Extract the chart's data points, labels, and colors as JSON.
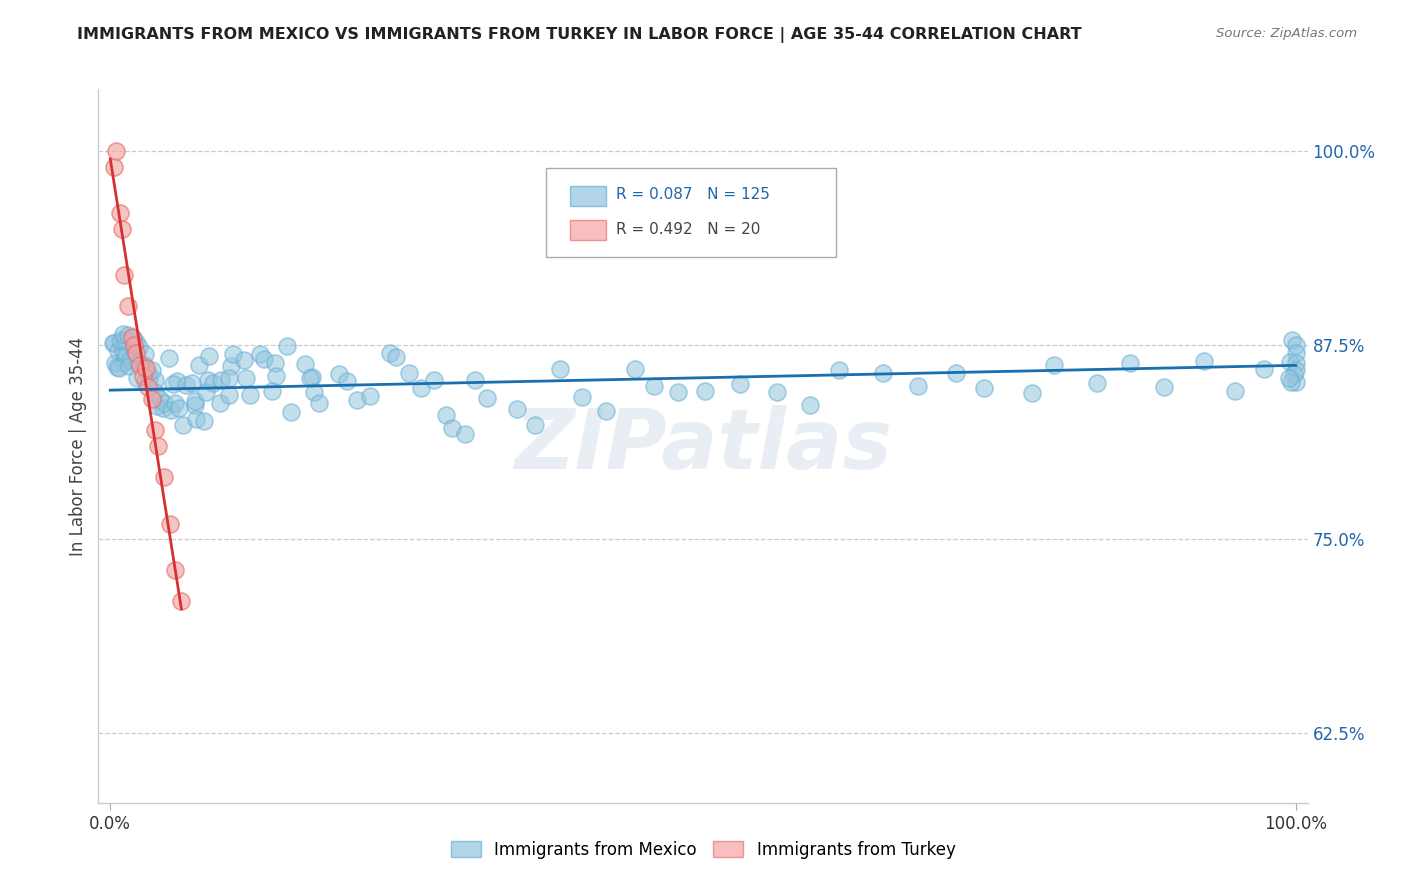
{
  "title": "IMMIGRANTS FROM MEXICO VS IMMIGRANTS FROM TURKEY IN LABOR FORCE | AGE 35-44 CORRELATION CHART",
  "source": "Source: ZipAtlas.com",
  "ylabel": "In Labor Force | Age 35-44",
  "right_ytick_labels": [
    "62.5%",
    "75.0%",
    "87.5%",
    "100.0%"
  ],
  "right_ytick_vals": [
    0.625,
    0.75,
    0.875,
    1.0
  ],
  "mexico_color": "#92c5de",
  "turkey_color": "#f4a5a5",
  "mexico_edge_color": "#6baed6",
  "turkey_edge_color": "#e87070",
  "mexico_line_color": "#1a6faf",
  "turkey_line_color": "#d63030",
  "mexico_R": 0.087,
  "mexico_N": 125,
  "turkey_R": 0.492,
  "turkey_N": 20,
  "legend_mexico": "Immigrants from Mexico",
  "legend_turkey": "Immigrants from Turkey",
  "watermark": "ZIPatlas",
  "xlim": [
    0.0,
    1.0
  ],
  "ylim": [
    0.58,
    1.04
  ],
  "mexico_x": [
    0.002,
    0.003,
    0.004,
    0.005,
    0.006,
    0.007,
    0.008,
    0.009,
    0.01,
    0.011,
    0.012,
    0.013,
    0.014,
    0.015,
    0.016,
    0.017,
    0.018,
    0.019,
    0.02,
    0.021,
    0.022,
    0.023,
    0.024,
    0.025,
    0.026,
    0.027,
    0.028,
    0.03,
    0.032,
    0.033,
    0.035,
    0.037,
    0.038,
    0.04,
    0.042,
    0.044,
    0.045,
    0.047,
    0.05,
    0.052,
    0.054,
    0.056,
    0.058,
    0.06,
    0.063,
    0.065,
    0.068,
    0.07,
    0.073,
    0.075,
    0.078,
    0.08,
    0.083,
    0.085,
    0.088,
    0.09,
    0.093,
    0.095,
    0.098,
    0.1,
    0.105,
    0.11,
    0.115,
    0.12,
    0.125,
    0.13,
    0.135,
    0.14,
    0.145,
    0.15,
    0.155,
    0.16,
    0.165,
    0.17,
    0.175,
    0.18,
    0.19,
    0.2,
    0.21,
    0.22,
    0.23,
    0.24,
    0.25,
    0.26,
    0.27,
    0.28,
    0.29,
    0.3,
    0.31,
    0.32,
    0.34,
    0.36,
    0.38,
    0.4,
    0.42,
    0.44,
    0.46,
    0.48,
    0.5,
    0.53,
    0.56,
    0.59,
    0.62,
    0.65,
    0.68,
    0.71,
    0.74,
    0.77,
    0.8,
    0.83,
    0.86,
    0.89,
    0.92,
    0.95,
    0.98,
    1.0,
    1.0,
    1.0,
    1.0,
    1.0,
    1.0,
    1.0,
    1.0,
    1.0,
    1.0
  ],
  "mexico_y": [
    0.88,
    0.878,
    0.875,
    0.872,
    0.87,
    0.868,
    0.865,
    0.862,
    0.875,
    0.873,
    0.87,
    0.868,
    0.865,
    0.862,
    0.875,
    0.873,
    0.87,
    0.868,
    0.865,
    0.862,
    0.875,
    0.873,
    0.87,
    0.868,
    0.865,
    0.862,
    0.86,
    0.857,
    0.855,
    0.852,
    0.85,
    0.848,
    0.845,
    0.842,
    0.84,
    0.838,
    0.835,
    0.832,
    0.865,
    0.855,
    0.848,
    0.84,
    0.832,
    0.825,
    0.855,
    0.848,
    0.84,
    0.832,
    0.825,
    0.86,
    0.852,
    0.845,
    0.838,
    0.862,
    0.855,
    0.848,
    0.841,
    0.862,
    0.855,
    0.848,
    0.87,
    0.863,
    0.856,
    0.849,
    0.872,
    0.865,
    0.858,
    0.851,
    0.844,
    0.837,
    0.87,
    0.863,
    0.856,
    0.849,
    0.842,
    0.835,
    0.862,
    0.855,
    0.848,
    0.841,
    0.87,
    0.863,
    0.856,
    0.849,
    0.842,
    0.835,
    0.828,
    0.821,
    0.85,
    0.843,
    0.836,
    0.829,
    0.852,
    0.845,
    0.838,
    0.86,
    0.853,
    0.846,
    0.839,
    0.852,
    0.845,
    0.838,
    0.86,
    0.853,
    0.846,
    0.859,
    0.852,
    0.845,
    0.858,
    0.851,
    0.864,
    0.857,
    0.86,
    0.853,
    0.866,
    0.88,
    0.875,
    0.87,
    0.868,
    0.865,
    0.862,
    0.86,
    0.858,
    0.855,
    0.852
  ],
  "turkey_x": [
    0.003,
    0.005,
    0.008,
    0.01,
    0.012,
    0.015,
    0.018,
    0.02,
    0.022,
    0.025,
    0.028,
    0.03,
    0.032,
    0.035,
    0.038,
    0.04,
    0.045,
    0.05,
    0.055,
    0.06
  ],
  "turkey_y": [
    0.99,
    1.0,
    0.96,
    0.95,
    0.92,
    0.9,
    0.88,
    0.875,
    0.87,
    0.862,
    0.855,
    0.86,
    0.848,
    0.84,
    0.82,
    0.81,
    0.79,
    0.76,
    0.73,
    0.71
  ],
  "mex_trend_x0": 0.0,
  "mex_trend_x1": 1.0,
  "mex_trend_y0": 0.846,
  "mex_trend_y1": 0.862,
  "tur_trend_x0": 0.0,
  "tur_trend_x1": 0.06,
  "tur_trend_y0": 0.995,
  "tur_trend_y1": 0.705
}
